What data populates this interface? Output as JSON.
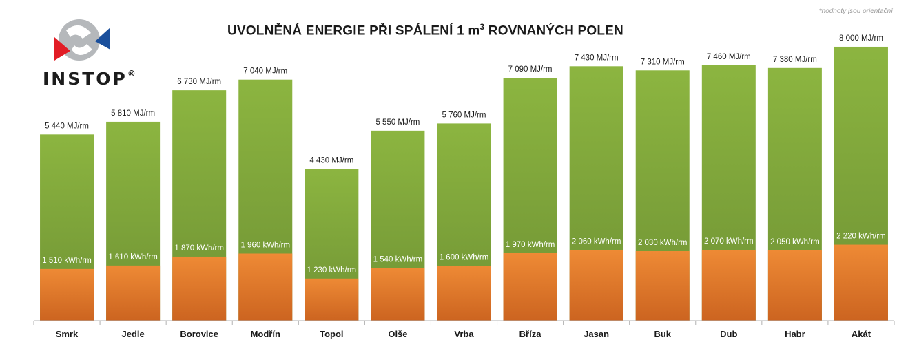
{
  "note": "*hodnoty jsou orientační",
  "logo": {
    "text": "INSTOP",
    "registered": "®"
  },
  "colors": {
    "green_top": "#8cb540",
    "green_bottom": "#6f9234",
    "orange_top": "#ee8a35",
    "orange_bottom": "#cc6420",
    "axis": "#b0b0b0",
    "label": "#1a1a1a",
    "inner_label": "#ffffff",
    "logo_gray": "#b5b8bb",
    "logo_red": "#e21c25",
    "logo_blue": "#1a4f9c"
  },
  "chart_data": {
    "type": "bar",
    "title_main": "UVOLNĚNÁ ENERGIE PŘI SPÁLENÍ 1 m",
    "title_sup": "3",
    "title_end": " ROVNANÝCH POLEN",
    "categories": [
      "Smrk",
      "Jedle",
      "Borovice",
      "Modřín",
      "Topol",
      "Olše",
      "Vrba",
      "Bříza",
      "Jasan",
      "Buk",
      "Dub",
      "Habr",
      "Akát"
    ],
    "ylim": [
      0,
      8200
    ],
    "series": [
      {
        "name": "MJ/rm",
        "values": [
          5440,
          5810,
          6730,
          7040,
          4430,
          5550,
          5760,
          7090,
          7430,
          7310,
          7460,
          7380,
          8000
        ],
        "labels": [
          "5 440 MJ/rm",
          "5 810 MJ/rm",
          "6 730 MJ/rm",
          "7 040 MJ/rm",
          "4 430 MJ/rm",
          "5 550 MJ/rm",
          "5 760 MJ/rm",
          "7 090 MJ/rm",
          "7 430 MJ/rm",
          "7 310 MJ/rm",
          "7 460 MJ/rm",
          "7 380 MJ/rm",
          "8 000 MJ/rm"
        ]
      },
      {
        "name": "kWh/rm",
        "values": [
          1510,
          1610,
          1870,
          1960,
          1230,
          1540,
          1600,
          1970,
          2060,
          2030,
          2070,
          2050,
          2220
        ],
        "labels": [
          "1 510 kWh/rm",
          "1 610 kWh/rm",
          "1 870 kWh/rm",
          "1 960 kWh/rm",
          "1 230 kWh/rm",
          "1 540 kWh/rm",
          "1 600 kWh/rm",
          "1 970 kWh/rm",
          "2 060 kWh/rm",
          "2 030 kWh/rm",
          "2 070 kWh/rm",
          "2 050 kWh/rm",
          "2 220 kWh/rm"
        ]
      }
    ],
    "xlabel": "",
    "ylabel": "",
    "grid": false,
    "legend": "none"
  }
}
